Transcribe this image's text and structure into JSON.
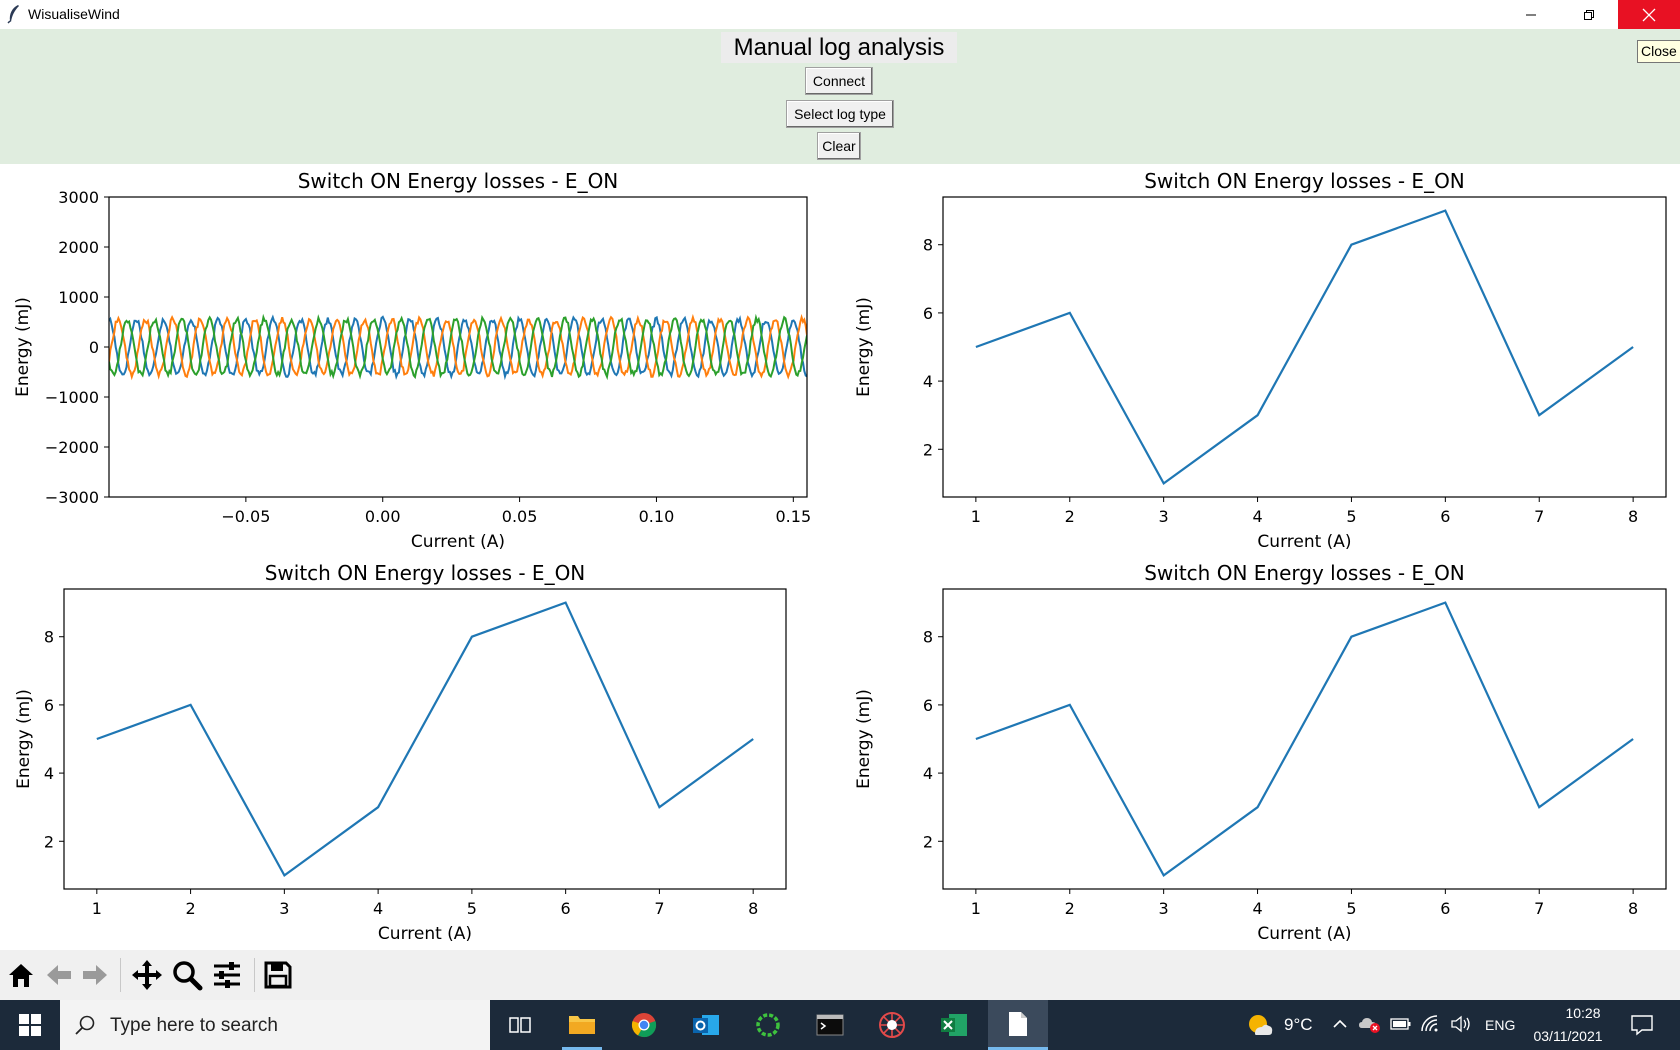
{
  "window": {
    "title": "WisualiseWind"
  },
  "header": {
    "title": "Manual log analysis",
    "buttons": {
      "connect": "Connect",
      "select_log_type": "Select log type",
      "clear": "Clear"
    },
    "tooltip": "Close",
    "background": "#e0eddf"
  },
  "chart_data": [
    {
      "type": "line",
      "title": "Switch ON Energy losses - E_ON",
      "xlabel": "Current (A)",
      "ylabel": "Energy (mJ)",
      "xlim": [
        -0.1,
        0.155
      ],
      "ylim": [
        -3000,
        3000
      ],
      "xticks": [
        "−0.05",
        "0.00",
        "0.05",
        "0.10",
        "0.15"
      ],
      "xtick_values": [
        -0.05,
        0.0,
        0.05,
        0.1,
        0.15
      ],
      "yticks": [
        "−3000",
        "−2000",
        "−1000",
        "0",
        "1000",
        "2000",
        "3000"
      ],
      "ytick_values": [
        -3000,
        -2000,
        -1000,
        0,
        1000,
        2000,
        3000
      ],
      "series": [
        {
          "color": "#1f77b4",
          "amplitude": 550,
          "frequency_hz": 100,
          "phase_deg": 90
        },
        {
          "color": "#ff7f0e",
          "amplitude": 550,
          "frequency_hz": 100,
          "phase_deg": -30
        },
        {
          "color": "#2ca02c",
          "amplitude": 550,
          "frequency_hz": 100,
          "phase_deg": 210
        }
      ]
    },
    {
      "type": "line",
      "title": "Switch ON Energy losses - E_ON",
      "xlabel": "Current (A)",
      "ylabel": "Energy (mJ)",
      "x": [
        1,
        2,
        3,
        4,
        5,
        6,
        7,
        8
      ],
      "values": [
        5,
        6,
        1,
        3,
        8,
        9,
        3,
        5
      ],
      "xlim": [
        0.65,
        8.35
      ],
      "ylim": [
        0.6,
        9.4
      ],
      "xticks": [
        "1",
        "2",
        "3",
        "4",
        "5",
        "6",
        "7",
        "8"
      ],
      "xtick_values": [
        1,
        2,
        3,
        4,
        5,
        6,
        7,
        8
      ],
      "yticks": [
        "2",
        "4",
        "6",
        "8"
      ],
      "ytick_values": [
        2,
        4,
        6,
        8
      ],
      "color": "#1f77b4"
    },
    {
      "type": "line",
      "title": "Switch ON Energy losses - E_ON",
      "xlabel": "Current (A)",
      "ylabel": "Energy (mJ)",
      "x": [
        1,
        2,
        3,
        4,
        5,
        6,
        7,
        8
      ],
      "values": [
        5,
        6,
        1,
        3,
        8,
        9,
        3,
        5
      ],
      "xlim": [
        0.65,
        8.35
      ],
      "ylim": [
        0.6,
        9.4
      ],
      "xticks": [
        "1",
        "2",
        "3",
        "4",
        "5",
        "6",
        "7",
        "8"
      ],
      "xtick_values": [
        1,
        2,
        3,
        4,
        5,
        6,
        7,
        8
      ],
      "yticks": [
        "2",
        "4",
        "6",
        "8"
      ],
      "ytick_values": [
        2,
        4,
        6,
        8
      ],
      "color": "#1f77b4"
    },
    {
      "type": "line",
      "title": "Switch ON Energy losses - E_ON",
      "xlabel": "Current (A)",
      "ylabel": "Energy (mJ)",
      "x": [
        1,
        2,
        3,
        4,
        5,
        6,
        7,
        8
      ],
      "values": [
        5,
        6,
        1,
        3,
        8,
        9,
        3,
        5
      ],
      "xlim": [
        0.65,
        8.35
      ],
      "ylim": [
        0.6,
        9.4
      ],
      "xticks": [
        "1",
        "2",
        "3",
        "4",
        "5",
        "6",
        "7",
        "8"
      ],
      "xtick_values": [
        1,
        2,
        3,
        4,
        5,
        6,
        7,
        8
      ],
      "yticks": [
        "2",
        "4",
        "6",
        "8"
      ],
      "ytick_values": [
        2,
        4,
        6,
        8
      ],
      "color": "#1f77b4"
    }
  ],
  "toolbar": {
    "icons": [
      "home-icon",
      "back-arrow-icon",
      "forward-arrow-icon",
      "pan-icon",
      "zoom-icon",
      "configure-subplots-icon",
      "save-icon"
    ]
  },
  "taskbar": {
    "search_placeholder": "Type here to search",
    "weather": "9°C",
    "language": "ENG",
    "time": "10:28",
    "date": "03/11/2021",
    "apps": [
      "task-view-icon",
      "file-explorer-icon",
      "chrome-icon",
      "outlook-icon",
      "app-ring-icon",
      "terminal-icon",
      "spider-app-icon",
      "excel-icon",
      "document-icon"
    ]
  }
}
